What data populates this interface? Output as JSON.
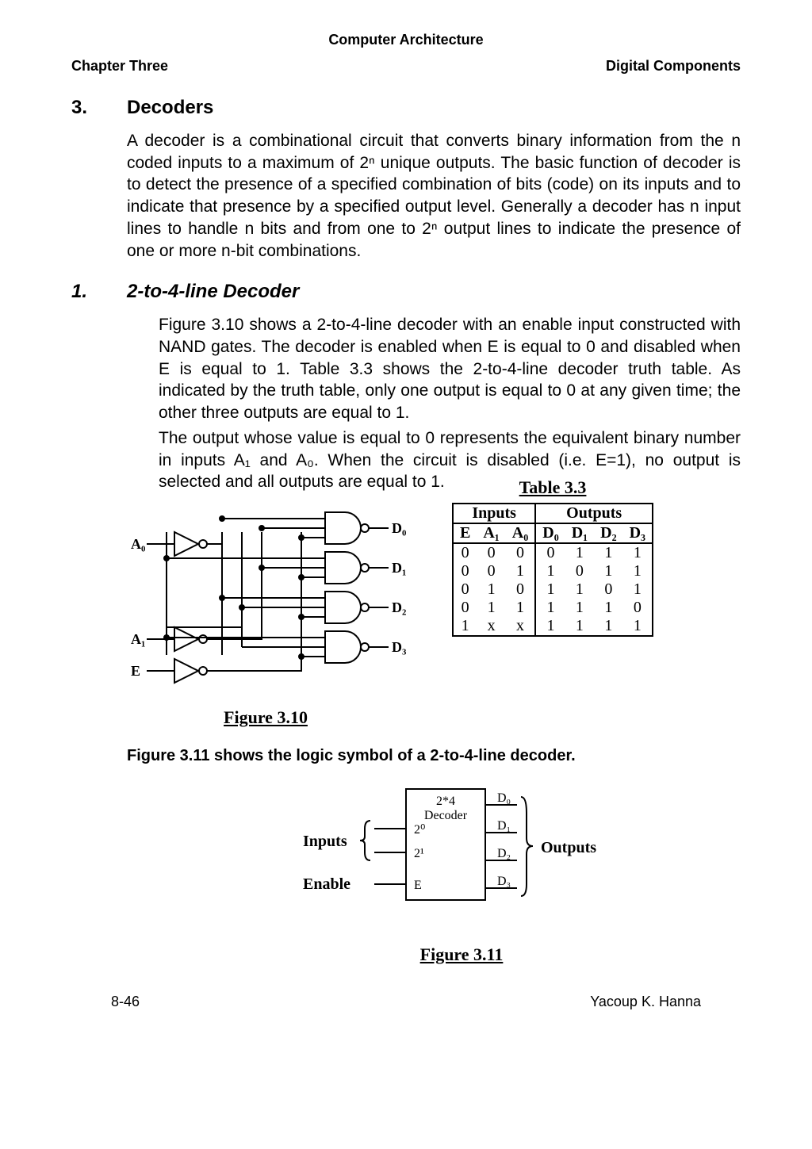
{
  "header": {
    "title": "Computer Architecture",
    "chapter": "Chapter Three",
    "topic": "Digital Components"
  },
  "section": {
    "num": "3.",
    "title": "Decoders",
    "paragraph": "A decoder is a combinational circuit that converts binary information from the n coded inputs to a maximum of 2ⁿ unique outputs. The basic function of decoder is to detect the presence of a specified combination of bits (code) on its inputs and to indicate that presence by a specified output level. Generally a decoder has n input lines to handle n bits and from one to 2ⁿ output lines to indicate the presence of one or more n-bit combinations."
  },
  "subsection": {
    "num": "1.",
    "title": "2-to-4-line Decoder",
    "p1": "Figure 3.10 shows a 2-to-4-line decoder with an enable input constructed with NAND gates. The decoder is enabled when E is equal to 0 and disabled when E is equal to 1. Table 3.3 shows the 2-to-4-line decoder truth table. As indicated by the truth table, only one output is equal to 0 at any given time; the other three outputs are equal to 1.",
    "p2": "The output whose value is equal to 0 represents the equivalent binary number in inputs A₁ and A₀. When the circuit is disabled (i.e. E=1), no output is selected and all outputs are equal to 1."
  },
  "figure310": {
    "caption": "Figure 3.10",
    "labels": {
      "A0": "A₀",
      "A1": "A₁",
      "E": "E",
      "D0": "D₀",
      "D1": "D₁",
      "D2": "D₂",
      "D3": "D₃"
    }
  },
  "table33": {
    "title": "Table 3.3",
    "head1": {
      "inputs": "Inputs",
      "outputs": "Outputs"
    },
    "head2": {
      "E": "E",
      "A1": "A₁",
      "A0": "A₀",
      "D0": "D₀",
      "D1": "D₁",
      "D2": "D₂",
      "D3": "D₃"
    },
    "rows": [
      [
        "0",
        "0",
        "0",
        "0",
        "1",
        "1",
        "1"
      ],
      [
        "0",
        "0",
        "1",
        "1",
        "0",
        "1",
        "1"
      ],
      [
        "0",
        "1",
        "0",
        "1",
        "1",
        "0",
        "1"
      ],
      [
        "0",
        "1",
        "1",
        "1",
        "1",
        "1",
        "0"
      ],
      [
        "1",
        "x",
        "x",
        "1",
        "1",
        "1",
        "1"
      ]
    ]
  },
  "statement": "Figure 3.11 shows the logic symbol of a 2-to-4-line decoder.",
  "figure311": {
    "caption": "Figure 3.11",
    "labels": {
      "box": "2*4\nDecoder",
      "inputs": "Inputs",
      "enable": "Enable",
      "outputs": "Outputs",
      "i0": "2⁰",
      "i1": "2¹",
      "E": "E",
      "D0": "D₀",
      "D1": "D₁",
      "D2": "D₂",
      "D3": "D₃"
    }
  },
  "footer": {
    "page": "8-46",
    "author": "Yacoup K. Hanna"
  }
}
